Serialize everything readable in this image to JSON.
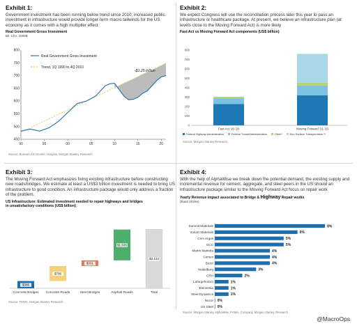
{
  "panels": {
    "p1": {
      "exhibit": "Exhibit 1:",
      "text": "Government investment has been running below trend since 2010; increased public investment in infrastructure would provide longer-term macro tailwinds for the US economy as it comes with a high multiplier effect",
      "chart_title": "Real Government Gross Investment",
      "chart_sub": "Bil. Chn. 2009$",
      "legend_1": "Real Government Gross Investment",
      "legend_2": "Trend, 1Q 1990 to 4Q 2010",
      "annotation": "-$1.25 trillion",
      "source": "Source: Bureau of Economic Analysis, Morgan Stanley Research"
    },
    "p2": {
      "exhibit": "Exhibit 2:",
      "text": "We expect Congress will use the reconciliation process later this year to pass an infrastructure or healthcare package. At present, we believe an infrastructure plan (at levels close to the Moving Forward Act) is more likely",
      "chart_title": "Fast Act vs Moving Forward Act components (US$ billion)",
      "legend": [
        "Federal Highway Administration",
        "Federal Transit Administration",
        "Other*",
        "Non Surface Transportation **"
      ],
      "source": "Source: Morgan Stanley Research"
    },
    "p3": {
      "exhibit": "Exhibit 3:",
      "text": "The Moving Forward Act emphasizes fixing existing infrastructure before constructing new roads/bridges. We estimate at least a US$3 trillion investment is needed to bring US infrastructure to good condition. An infrastructure package would only address a fraction of the problem.",
      "chart_title": "US Infrastructure: Estimated investment needed to repair highways and bridges in unsatisfactory conditions (US$ billion)",
      "source": "Source: FHWA, Morgan Stanley Research"
    },
    "p4": {
      "exhibit": "Exhibit 4:",
      "text": "With the help of AlphaWise we break down the potential demand, the existing supply and incremental revenue for cement, aggregate, and steel peers in the US should an infrastructure package similar to the Moving Forward Act focus on repair work",
      "chart_title_a": "Yearly Revenue Impact associated to Bridge & ",
      "chart_title_b": "Highway",
      "chart_title_c": " Repair works",
      "chart_sub": "(Base 2025e)",
      "source": "Source: Morgan Stanley AlphaWise, FHWA, Company, Morgan Stanley Research"
    }
  },
  "watermark": "@MacroOps",
  "chart_data": [
    {
      "type": "line",
      "title": "Real Government Gross Investment",
      "ylabel": "Bil. Chn. 2009$",
      "x": [
        1990,
        1992,
        1994,
        1996,
        1998,
        2000,
        2002,
        2004,
        2006,
        2008,
        2009,
        2010,
        2011,
        2012,
        2013,
        2014,
        2015,
        2016,
        2017,
        2018,
        2019,
        2020,
        2021
      ],
      "xticks": [
        "90",
        "95",
        "00",
        "05",
        "10",
        "15",
        "20"
      ],
      "xtick_years": [
        1990,
        1995,
        2000,
        2005,
        2010,
        2015,
        2020
      ],
      "xlim": [
        1990,
        2021
      ],
      "ylim": [
        450,
        800
      ],
      "yticks": [
        450,
        500,
        550,
        600,
        650,
        700,
        750,
        800
      ],
      "series": [
        {
          "name": "Real Government Gross Investment",
          "values": [
            482,
            490,
            482,
            495,
            520,
            555,
            590,
            600,
            620,
            660,
            668,
            670,
            645,
            620,
            605,
            607,
            615,
            630,
            640,
            660,
            680,
            695,
            700
          ]
        },
        {
          "name": "Trend, 1Q 1990 to 4Q 2010",
          "values": [
            478,
            495,
            513,
            530,
            548,
            565,
            583,
            600,
            618,
            635,
            644,
            652,
            661,
            670,
            678,
            687,
            696,
            705,
            714,
            722,
            731,
            740,
            749
          ]
        }
      ],
      "grid": false,
      "legend": "top-left"
    },
    {
      "type": "bar",
      "stacked": true,
      "title": "Fast Act vs Moving Forward Act components (US$ billion)",
      "categories": [
        "Fast Act '16-'20",
        "Moving Forward '21-'25"
      ],
      "ylim": [
        0,
        800
      ],
      "yticks": [
        0,
        100,
        200,
        300,
        400,
        500,
        600,
        700,
        800
      ],
      "series": [
        {
          "name": "Federal Highway Administration",
          "values": [
            226,
            319
          ],
          "color": "#1f77b4"
        },
        {
          "name": "Federal Transit Administration",
          "values": [
            62,
            105
          ],
          "color": "#7fc2e0"
        },
        {
          "name": "Other*",
          "values": [
            12,
            30
          ],
          "color": "#b5d46b"
        },
        {
          "name": "Non Surface Transportation **",
          "values": [
            5,
            306
          ],
          "color": "#a8d8e8"
        }
      ],
      "legend": "bottom"
    },
    {
      "type": "bar",
      "waterfall": true,
      "title": "US Infrastructure: Estimated investment needed to repair highways and bridges in unsatisfactory conditions (US$ billion)",
      "categories": [
        "Concrete Bridges",
        "Concrete Roads",
        "Steel Bridges",
        "Asphalt Roads",
        "Total"
      ],
      "values": [
        386,
        796,
        301,
        1635,
        3134
      ],
      "labels": [
        "$386",
        "$796",
        "$301",
        "$1,635",
        "$3,134"
      ],
      "colors": [
        "#1f6fae",
        "#f3d27a",
        "#e07b5a",
        "#4caf6a",
        "#d9d9d9"
      ],
      "ylim": [
        0,
        3400
      ]
    },
    {
      "type": "bar",
      "orientation": "horizontal",
      "title": "Yearly Revenue Impact associated to Bridge & Highway Repair works",
      "categories": [
        "Summit Materials",
        "Vulcan Materials",
        "Cem Argos",
        "GCC",
        "Martin Marietta",
        "Cemex",
        "Buzzi",
        "Heidelberg",
        "CRH",
        "Lafargeholcim",
        "Elementia",
        "Steel Dynamics",
        "Nucor",
        "US Steel"
      ],
      "values": [
        8,
        6,
        5,
        5,
        4,
        4,
        4,
        3,
        2,
        1,
        1,
        1,
        0,
        0
      ],
      "labels": [
        "8%",
        "6%",
        "5%",
        "5%",
        "4%",
        "4%",
        "4%",
        "3%",
        "2%",
        "1%",
        "1%",
        "1%",
        "0%",
        "0%"
      ],
      "color": "#1f6fae",
      "xlim": [
        0,
        8.5
      ]
    }
  ]
}
